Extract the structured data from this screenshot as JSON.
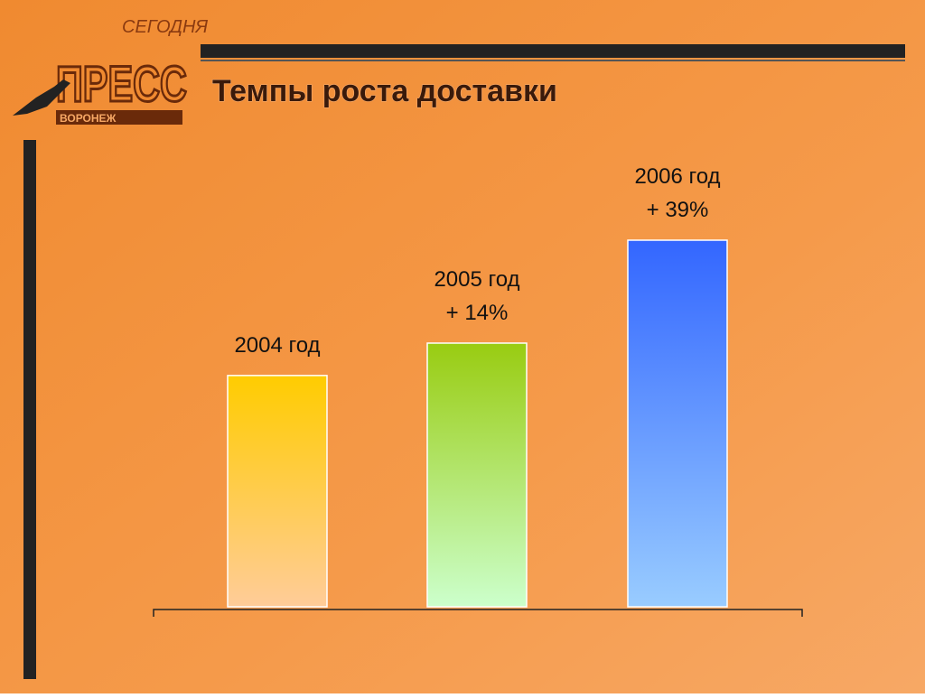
{
  "logo": {
    "top": "СЕГОДНЯ",
    "main": "ПРЕСС",
    "bottom": "ВОРОНЕЖ"
  },
  "chart_data": {
    "type": "bar",
    "title": "Темпы роста доставки",
    "categories": [
      "2004 год",
      "2005 год",
      "2006 год"
    ],
    "values": [
      100,
      114,
      158.5
    ],
    "colors": [
      [
        "#ffcc00",
        "#ffcc99"
      ],
      [
        "#99cc11",
        "#ccffcc"
      ],
      [
        "#3366ff",
        "#99ccff"
      ]
    ],
    "growth": {
      "values": [
        null,
        14,
        39
      ],
      "value_labels": [
        null,
        "+ 14%",
        "+ 39%"
      ]
    }
  }
}
